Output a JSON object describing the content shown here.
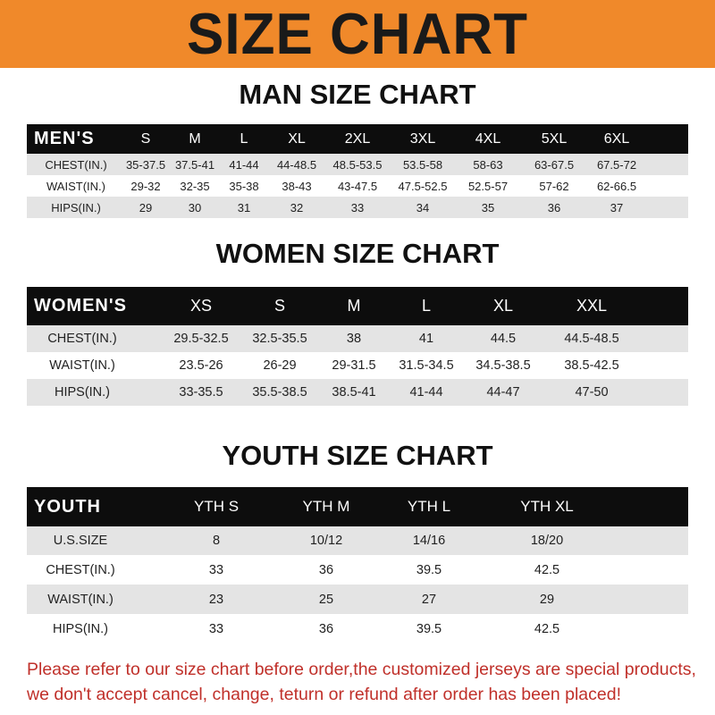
{
  "banner": {
    "title": "SIZE CHART",
    "color": "#f0892a"
  },
  "men": {
    "title": "MAN SIZE CHART",
    "header": "MEN'S",
    "sizes": [
      "S",
      "M",
      "L",
      "XL",
      "2XL",
      "3XL",
      "4XL",
      "5XL",
      "6XL"
    ],
    "rows": [
      {
        "label": "CHEST(IN.)",
        "values": [
          "35-37.5",
          "37.5-41",
          "41-44",
          "44-48.5",
          "48.5-53.5",
          "53.5-58",
          "58-63",
          "63-67.5",
          "67.5-72"
        ]
      },
      {
        "label": "WAIST(IN.)",
        "values": [
          "29-32",
          "32-35",
          "35-38",
          "38-43",
          "43-47.5",
          "47.5-52.5",
          "52.5-57",
          "57-62",
          "62-66.5"
        ]
      },
      {
        "label": "HIPS(IN.)",
        "values": [
          "29",
          "30",
          "31",
          "32",
          "33",
          "34",
          "35",
          "36",
          "37"
        ]
      }
    ]
  },
  "women": {
    "title": "WOMEN SIZE CHART",
    "header": "WOMEN'S",
    "sizes": [
      "XS",
      "S",
      "M",
      "L",
      "XL",
      "XXL"
    ],
    "rows": [
      {
        "label": "CHEST(IN.)",
        "values": [
          "29.5-32.5",
          "32.5-35.5",
          "38",
          "41",
          "44.5",
          "44.5-48.5"
        ]
      },
      {
        "label": "WAIST(IN.)",
        "values": [
          "23.5-26",
          "26-29",
          "29-31.5",
          "31.5-34.5",
          "34.5-38.5",
          "38.5-42.5"
        ]
      },
      {
        "label": "HIPS(IN.)",
        "values": [
          "33-35.5",
          "35.5-38.5",
          "38.5-41",
          "41-44",
          "44-47",
          "47-50"
        ]
      }
    ]
  },
  "youth": {
    "title": "YOUTH SIZE CHART",
    "header": "YOUTH",
    "sizes": [
      "YTH S",
      "YTH M",
      "YTH L",
      "YTH XL"
    ],
    "rows": [
      {
        "label": "U.S.SIZE",
        "values": [
          "8",
          "10/12",
          "14/16",
          "18/20"
        ]
      },
      {
        "label": "CHEST(IN.)",
        "values": [
          "33",
          "36",
          "39.5",
          "42.5"
        ]
      },
      {
        "label": "WAIST(IN.)",
        "values": [
          "23",
          "25",
          "27",
          "29"
        ]
      },
      {
        "label": "HIPS(IN.)",
        "values": [
          "33",
          "36",
          "39.5",
          "42.5"
        ]
      }
    ]
  },
  "footer": {
    "line1": "Please refer to our size chart before order,the customized jerseys are special products,",
    "line2": "we don't accept cancel, change, teturn or refund after order has been placed!",
    "color": "#c0302a"
  }
}
